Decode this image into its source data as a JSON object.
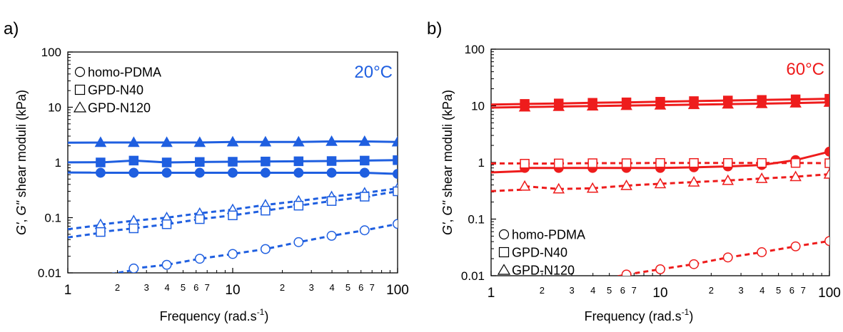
{
  "chart_data": [
    {
      "panel_label": "a)",
      "type": "line",
      "x_scale": "log",
      "y_scale": "log",
      "xlim": [
        1,
        100
      ],
      "ylim": [
        0.01,
        100
      ],
      "xlabel": "Frequency (rad.s",
      "xlabel_sup": "-1",
      "xlabel_close": ")",
      "ylabel_g1": "G'",
      "ylabel_sep": ", ",
      "ylabel_g2": "G\"",
      "ylabel_rest": " shear moduli (kPa)",
      "x_major_ticks": [
        "1",
        "10",
        "100"
      ],
      "x_minor_ticks": [
        "2",
        "3",
        "4",
        "5",
        "6",
        "7",
        "2",
        "3",
        "4",
        "5",
        "6",
        "7"
      ],
      "y_ticks": [
        "0.01",
        "0.1",
        "1",
        "10",
        "100"
      ],
      "annotation": "20°C",
      "color": "#1f5fe0",
      "legend_position": "top-left",
      "legend": [
        {
          "marker": "circle",
          "label": "homo-PDMA"
        },
        {
          "marker": "square",
          "label": "GPD-N40"
        },
        {
          "marker": "triangle",
          "label": "GPD-N120"
        }
      ],
      "series": [
        {
          "modulus": "G'",
          "sample": "GPD-N120",
          "marker": "triangle",
          "filled": true,
          "line": "solid",
          "x": [
            1.58,
            2.51,
            3.98,
            6.31,
            10,
            15.8,
            25.1,
            39.8,
            63.1,
            100
          ],
          "y": [
            2.3,
            2.3,
            2.3,
            2.3,
            2.35,
            2.35,
            2.35,
            2.4,
            2.4,
            2.35
          ]
        },
        {
          "modulus": "G'",
          "sample": "GPD-N40",
          "marker": "square",
          "filled": true,
          "line": "solid",
          "x": [
            1.58,
            2.51,
            3.98,
            6.31,
            10,
            15.8,
            25.1,
            39.8,
            63.1,
            100
          ],
          "y": [
            1.0,
            1.08,
            1.0,
            1.02,
            1.03,
            1.04,
            1.05,
            1.06,
            1.08,
            1.1
          ]
        },
        {
          "modulus": "G'",
          "sample": "homo-PDMA",
          "marker": "circle",
          "filled": true,
          "line": "solid",
          "x": [
            1.58,
            2.51,
            3.98,
            6.31,
            10,
            15.8,
            25.1,
            39.8,
            63.1,
            100
          ],
          "y": [
            0.65,
            0.65,
            0.65,
            0.65,
            0.65,
            0.65,
            0.65,
            0.65,
            0.65,
            0.62
          ]
        },
        {
          "modulus": "G\"",
          "sample": "GPD-N120",
          "marker": "triangle",
          "filled": false,
          "line": "dashed",
          "x": [
            1.58,
            2.51,
            3.98,
            6.31,
            10,
            15.8,
            25.1,
            39.8,
            63.1,
            100
          ],
          "y": [
            0.075,
            0.088,
            0.1,
            0.12,
            0.14,
            0.17,
            0.2,
            0.24,
            0.28,
            0.34
          ]
        },
        {
          "modulus": "G\"",
          "sample": "GPD-N40",
          "marker": "square",
          "filled": false,
          "line": "dashed",
          "x": [
            1.58,
            2.51,
            3.98,
            6.31,
            10,
            15.8,
            25.1,
            39.8,
            63.1,
            100
          ],
          "y": [
            0.055,
            0.064,
            0.076,
            0.094,
            0.11,
            0.134,
            0.165,
            0.2,
            0.24,
            0.3
          ]
        },
        {
          "modulus": "G\"",
          "sample": "homo-PDMA",
          "marker": "circle",
          "filled": false,
          "line": "dashed",
          "x": [
            2.51,
            3.98,
            6.31,
            10,
            15.8,
            25.1,
            39.8,
            63.1,
            100
          ],
          "y": [
            0.012,
            0.014,
            0.018,
            0.022,
            0.027,
            0.036,
            0.047,
            0.059,
            0.077
          ]
        }
      ]
    },
    {
      "panel_label": "b)",
      "type": "line",
      "x_scale": "log",
      "y_scale": "log",
      "xlim": [
        1,
        100
      ],
      "ylim": [
        0.01,
        100
      ],
      "xlabel": "Frequency (rad.s",
      "xlabel_sup": "-1",
      "xlabel_close": ")",
      "ylabel_g1": "G'",
      "ylabel_sep": ", ",
      "ylabel_g2": "G\"",
      "ylabel_rest": " shear moduli (kPa)",
      "x_major_ticks": [
        "1",
        "10",
        "100"
      ],
      "x_minor_ticks": [
        "2",
        "3",
        "4",
        "5",
        "6",
        "7",
        "2",
        "3",
        "4",
        "5",
        "6",
        "7"
      ],
      "y_ticks": [
        "0.01",
        "0.1",
        "1",
        "10",
        "100"
      ],
      "annotation": "60°C",
      "color": "#ee1c1c",
      "legend_position": "bottom-left",
      "legend": [
        {
          "marker": "circle",
          "label": "homo-PDMA"
        },
        {
          "marker": "square",
          "label": "GPD-N40"
        },
        {
          "marker": "triangle",
          "label": "GPD-N120"
        }
      ],
      "series": [
        {
          "modulus": "G'",
          "sample": "GPD-N40",
          "marker": "square",
          "filled": true,
          "line": "solid",
          "x": [
            1.58,
            2.51,
            3.98,
            6.31,
            10,
            15.8,
            25.1,
            39.8,
            63.1,
            100
          ],
          "y": [
            10.8,
            11.0,
            11.3,
            11.5,
            11.8,
            12.1,
            12.4,
            12.7,
            13.0,
            13.3
          ]
        },
        {
          "modulus": "G'",
          "sample": "GPD-N120",
          "marker": "triangle",
          "filled": true,
          "line": "solid",
          "x": [
            1.58,
            2.51,
            3.98,
            6.31,
            10,
            15.8,
            25.1,
            39.8,
            63.1,
            100
          ],
          "y": [
            9.5,
            9.7,
            9.9,
            10.1,
            10.3,
            10.5,
            10.7,
            10.9,
            11.2,
            11.5
          ]
        },
        {
          "modulus": "G'",
          "sample": "homo-PDMA",
          "marker": "circle",
          "filled": true,
          "line": "solid",
          "x": [
            1.58,
            2.51,
            3.98,
            6.31,
            10,
            15.8,
            25.1,
            39.8,
            63.1,
            100
          ],
          "y": [
            0.8,
            0.8,
            0.8,
            0.8,
            0.8,
            0.82,
            0.85,
            0.9,
            1.1,
            1.55
          ]
        },
        {
          "modulus": "G\"",
          "sample": "GPD-N40",
          "marker": "square",
          "filled": false,
          "line": "dashed",
          "x": [
            1.58,
            2.51,
            3.98,
            6.31,
            10,
            15.8,
            25.1,
            39.8,
            63.1,
            100
          ],
          "y": [
            0.95,
            0.96,
            0.97,
            0.97,
            0.98,
            0.98,
            0.98,
            0.98,
            0.98,
            0.97
          ]
        },
        {
          "modulus": "G\"",
          "sample": "GPD-N120",
          "marker": "triangle",
          "filled": false,
          "line": "dashed",
          "x": [
            1.58,
            2.51,
            3.98,
            6.31,
            10,
            15.8,
            25.1,
            39.8,
            63.1,
            100
          ],
          "y": [
            0.38,
            0.34,
            0.35,
            0.39,
            0.42,
            0.45,
            0.48,
            0.52,
            0.56,
            0.62
          ]
        },
        {
          "modulus": "G\"",
          "sample": "homo-PDMA",
          "marker": "circle",
          "filled": false,
          "line": "dashed",
          "x": [
            6.31,
            10,
            15.8,
            25.1,
            39.8,
            63.1,
            100
          ],
          "y": [
            0.0105,
            0.013,
            0.016,
            0.021,
            0.026,
            0.033,
            0.041
          ]
        }
      ]
    }
  ]
}
